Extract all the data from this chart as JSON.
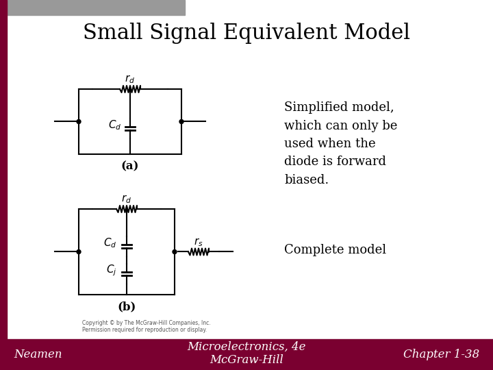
{
  "title": "Small Signal Equivalent Model",
  "title_fontsize": 22,
  "title_font": "serif",
  "bg_color": "#ffffff",
  "header_bar_color": "#999999",
  "side_bar_color": "#7a0030",
  "footer_text_left": "Neamen",
  "footer_text_mid": "Microelectronics, 4e\nMcGraw-Hill",
  "footer_text_right": "Chapter 1-38",
  "footer_fontsize": 12,
  "label_a": "(a)",
  "label_b": "(b)",
  "text_simplified": "Simplified model,\nwhich can only be\nused when the\ndiode is forward\nbiased.",
  "text_complete": "Complete model",
  "text_fontsize": 13,
  "circuit_color": "#000000",
  "rd_label": "$r_d$",
  "cd_label": "$C_d$",
  "cj_label": "$C_j$",
  "rs_label": "$r_s$"
}
